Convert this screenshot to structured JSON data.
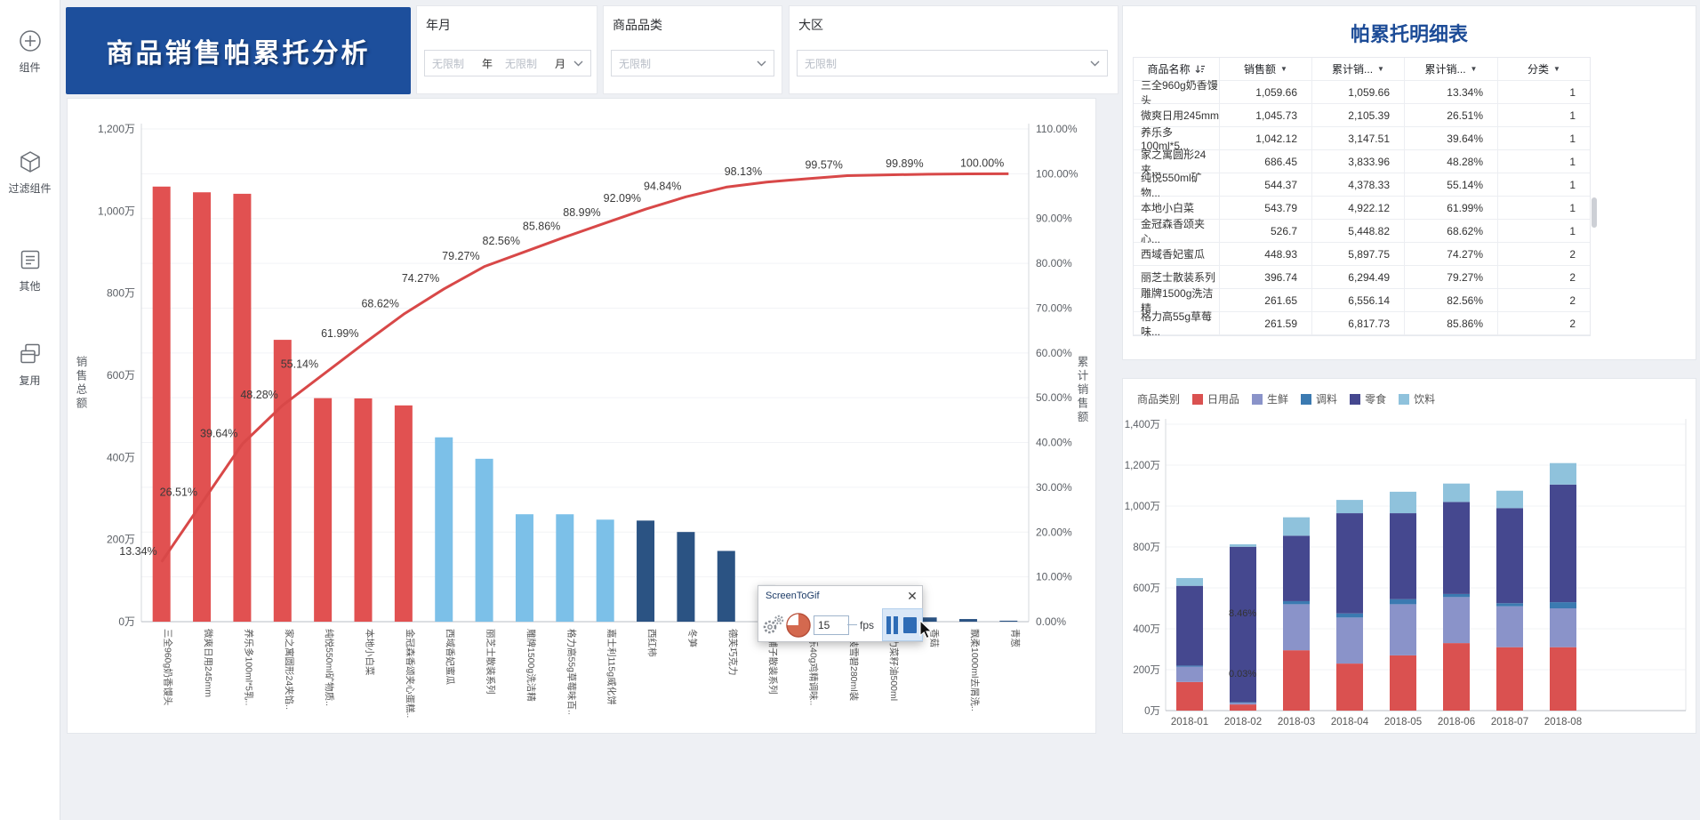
{
  "sidebar": {
    "items": [
      {
        "id": "components",
        "label": "组件"
      },
      {
        "id": "filter-components",
        "label": "过滤组件"
      },
      {
        "id": "other",
        "label": "其他"
      },
      {
        "id": "reuse",
        "label": "复用"
      }
    ]
  },
  "banner": {
    "title": "商品销售帕累托分析",
    "bg_color": "#1d4f9c"
  },
  "filters": {
    "year_month": {
      "label": "年月",
      "year_placeholder": "无限制",
      "year_unit": "年",
      "month_placeholder": "无限制",
      "month_unit": "月"
    },
    "category": {
      "label": "商品品类",
      "placeholder": "无限制"
    },
    "region": {
      "label": "大区",
      "placeholder": "无限制"
    }
  },
  "chart_data": [
    {
      "id": "pareto",
      "type": "bar",
      "subtype": "pareto bar + cumulative line",
      "ylabel_left": "销售总额",
      "ylabel_right": "累计销售额",
      "unit": "万",
      "yticks_left": [
        "0万",
        "200万",
        "400万",
        "600万",
        "800万",
        "1,000万",
        "1,200万"
      ],
      "ylim_left": [
        0,
        1200
      ],
      "yticks_right": [
        "0.00%",
        "10.00%",
        "20.00%",
        "30.00%",
        "40.00%",
        "50.00%",
        "60.00%",
        "70.00%",
        "80.00%",
        "90.00%",
        "100.00%",
        "110.00%"
      ],
      "ylim_right": [
        0,
        110
      ],
      "categories": [
        "三全960g奶香馒头",
        "微爽日用245mm",
        "养乐多100ml*5乳..",
        "家之寓圆形24夹馅..",
        "纯悦550ml矿物质..",
        "本地小白菜",
        "金冠森香颂夹心蛋糕..",
        "西域香妃蜜瓜",
        "丽芝士散装系列",
        "雕牌1500g洗洁精",
        "格力高55g草莓味百..",
        "嘉士利115g威化饼",
        "西红柿",
        "冬笋",
        "德芙巧克力",
        "津铺子散装系列",
        "太乐40g鸡精调味..",
        "袋装雪碧280ml装",
        "多力菜籽油500ml",
        "香菇",
        "飘柔1000ml去屑洗..",
        "青葱"
      ],
      "bar_series_name": "销售额",
      "values": [
        1059.66,
        1045.73,
        1042.12,
        686.45,
        544.37,
        543.79,
        526.7,
        448.93,
        396.74,
        261.65,
        261.59,
        248.5,
        246.2,
        218.4,
        172.3,
        88.9,
        60.3,
        54,
        15.1,
        10.3,
        6.4,
        2.4
      ],
      "line_series_name": "累计销售额占比",
      "cumulative_pct": [
        13.34,
        26.51,
        39.64,
        48.28,
        55.14,
        61.99,
        68.62,
        74.27,
        79.27,
        82.56,
        85.86,
        88.99,
        92.09,
        94.84,
        97.01,
        98.13,
        98.89,
        99.57,
        99.76,
        99.89,
        99.97,
        100
      ],
      "pct_labels_shown": [
        "13.34%",
        "26.51%",
        "39.64%",
        "48.28%",
        "55.14%",
        "61.99%",
        "68.62%",
        "74.27%",
        "79.27%",
        "82.56%",
        "85.86%",
        "88.99%",
        "92.09%",
        "94.84%",
        "98.13%",
        "99.57%",
        "99.89%",
        "100.00%"
      ],
      "pct_label_indices": [
        0,
        1,
        2,
        3,
        4,
        5,
        6,
        7,
        8,
        9,
        10,
        11,
        12,
        13,
        15,
        17,
        19,
        21
      ],
      "group_of_bar": [
        1,
        1,
        1,
        1,
        1,
        1,
        1,
        2,
        2,
        2,
        2,
        2,
        3,
        3,
        3,
        3,
        3,
        3,
        3,
        3,
        3,
        3
      ],
      "group_colors": {
        "1": "#e15151",
        "2": "#7cc0e8",
        "3": "#2b5383"
      },
      "line_color": "#d84848",
      "grid": "on",
      "legend_position": "none"
    },
    {
      "id": "category-trend",
      "type": "bar",
      "subtype": "stacked",
      "legend_title": "商品类别",
      "legend_position": "top-left",
      "categories": [
        "2018-01",
        "2018-02",
        "2018-03",
        "2018-04",
        "2018-05",
        "2018-06",
        "2018-07",
        "2018-08"
      ],
      "series": [
        {
          "name": "日用品",
          "color": "#da5150",
          "values": [
            140,
            30,
            295,
            230,
            270,
            330,
            310,
            310
          ]
        },
        {
          "name": "生鲜",
          "color": "#8a93c9",
          "values": [
            75,
            8,
            225,
            225,
            250,
            225,
            200,
            190
          ]
        },
        {
          "name": "调料",
          "color": "#3b7ab1",
          "values": [
            5,
            3,
            15,
            20,
            25,
            15,
            15,
            30
          ]
        },
        {
          "name": "零食",
          "color": "#45488f",
          "values": [
            390,
            760,
            320,
            490,
            420,
            450,
            465,
            575
          ]
        },
        {
          "name": "饮料",
          "color": "#8fc2dc",
          "values": [
            38,
            12,
            90,
            65,
            105,
            90,
            85,
            105
          ]
        }
      ],
      "unit": "万",
      "yticks": [
        "0万",
        "200万",
        "400万",
        "600万",
        "800万",
        "1,000万",
        "1,200万",
        "1,400万"
      ],
      "ylim": [
        0,
        1400
      ],
      "grid": "on",
      "annotations": [
        {
          "text": "8.46%",
          "category_index": 1,
          "y_value": 460
        },
        {
          "text": "0.03%",
          "category_index": 1,
          "y_value": 165
        }
      ]
    }
  ],
  "detail_table": {
    "title": "帕累托明细表",
    "columns": [
      {
        "label": "商品名称",
        "icon": "sort-desc"
      },
      {
        "label": "销售额",
        "icon": "filter"
      },
      {
        "label": "累计销...",
        "icon": "filter"
      },
      {
        "label": "累计销...",
        "icon": "filter"
      },
      {
        "label": "分类",
        "icon": "filter"
      }
    ],
    "rows": [
      [
        "三全960g奶香馒头",
        "1,059.66",
        "1,059.66",
        "13.34%",
        "1"
      ],
      [
        "微爽日用245mm",
        "1,045.73",
        "2,105.39",
        "26.51%",
        "1"
      ],
      [
        "养乐多100ml*5...",
        "1,042.12",
        "3,147.51",
        "39.64%",
        "1"
      ],
      [
        "家之寓圆形24夹...",
        "686.45",
        "3,833.96",
        "48.28%",
        "1"
      ],
      [
        "纯悦550ml矿物...",
        "544.37",
        "4,378.33",
        "55.14%",
        "1"
      ],
      [
        "本地小白菜",
        "543.79",
        "4,922.12",
        "61.99%",
        "1"
      ],
      [
        "金冠森香颂夹心...",
        "526.7",
        "5,448.82",
        "68.62%",
        "1"
      ],
      [
        "西域香妃蜜瓜",
        "448.93",
        "5,897.75",
        "74.27%",
        "2"
      ],
      [
        "丽芝士散装系列",
        "396.74",
        "6,294.49",
        "79.27%",
        "2"
      ],
      [
        "雕牌1500g洗洁精",
        "261.65",
        "6,556.14",
        "82.56%",
        "2"
      ],
      [
        "格力高55g草莓味...",
        "261.59",
        "6,817.73",
        "85.86%",
        "2"
      ]
    ]
  },
  "screentogif": {
    "title": "ScreenToGif",
    "fps_value": "15",
    "fps_label": "fps"
  }
}
